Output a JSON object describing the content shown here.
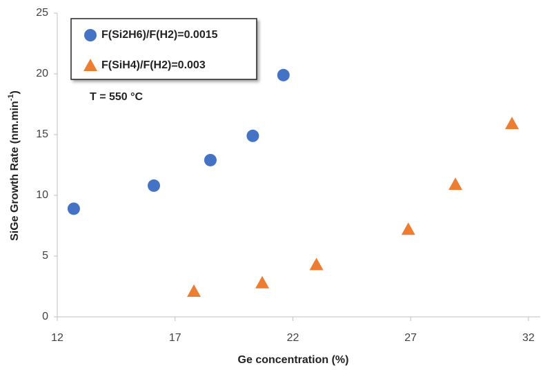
{
  "chart_data": {
    "type": "scatter",
    "xlabel": "Ge concentration (%)",
    "ylabel": {
      "text": "SiGe Growth Rate (nm.min",
      "superscript": "-1",
      "suffix": ")"
    },
    "annotation": "T = 550 °C",
    "xlim": [
      12,
      32.5
    ],
    "xticks": [
      12,
      17,
      22,
      27,
      32
    ],
    "ylim": [
      0,
      25
    ],
    "yticks": [
      0,
      5,
      10,
      15,
      20,
      25
    ],
    "grid": false,
    "legend": "upper left",
    "series": [
      {
        "name": "F(Si2H6)/F(H2)=0.0015",
        "color": "#4472c4",
        "marker": "circle",
        "x": [
          12.7,
          16.1,
          18.5,
          20.3,
          21.6
        ],
        "values": [
          8.9,
          10.8,
          12.9,
          14.9,
          19.9
        ]
      },
      {
        "name": "F(SiH4)/F(H2)=0.003",
        "color": "#ed7d31",
        "marker": "triangle",
        "x": [
          17.8,
          20.7,
          23.0,
          26.9,
          28.9,
          31.3
        ],
        "values": [
          2.1,
          2.8,
          4.3,
          7.2,
          10.9,
          15.9
        ]
      }
    ]
  }
}
